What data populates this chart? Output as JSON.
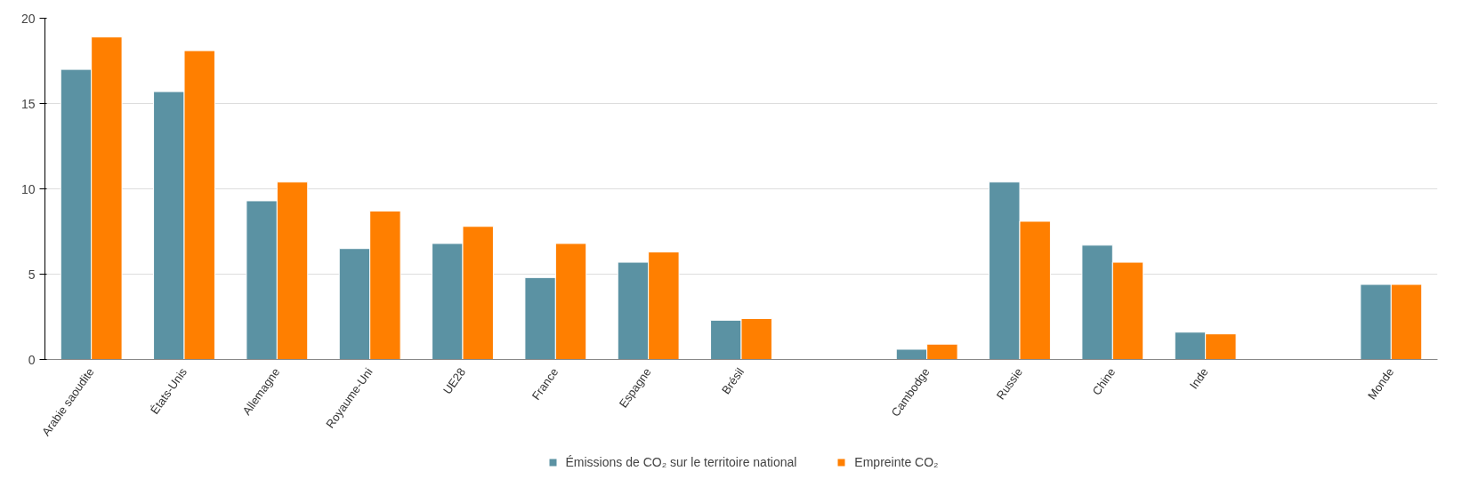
{
  "chart_data": {
    "type": "bar",
    "categories": [
      "Arabie saoudite",
      "États-Unis",
      "Allemagne",
      "Royaume-Uni",
      "UE28",
      "France",
      "Espagne",
      "Brésil",
      null,
      "Cambodge",
      "Russie",
      "Chine",
      "Inde",
      null,
      "Monde"
    ],
    "series": [
      {
        "name": "Émissions de CO₂ sur le territoire national",
        "color": "#5b92a3",
        "values": [
          17.0,
          15.7,
          9.3,
          6.5,
          6.8,
          4.8,
          5.7,
          2.3,
          null,
          0.6,
          10.4,
          6.7,
          1.6,
          null,
          4.4
        ]
      },
      {
        "name": "Empreinte CO₂",
        "color": "#ff7f00",
        "values": [
          18.9,
          18.1,
          10.4,
          8.7,
          7.8,
          6.8,
          6.3,
          2.4,
          null,
          0.9,
          8.1,
          5.7,
          1.5,
          null,
          4.4
        ]
      }
    ],
    "ylim": [
      0,
      20
    ],
    "yticks": [
      0,
      5,
      10,
      15,
      20
    ],
    "grid": "y",
    "legend": "bottom"
  }
}
